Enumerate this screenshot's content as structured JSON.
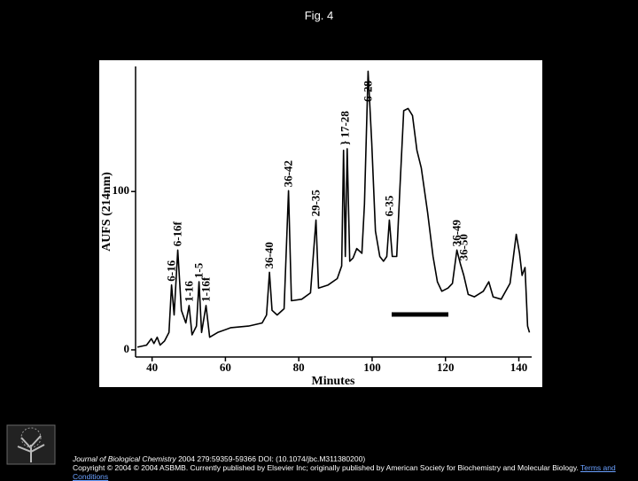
{
  "header": {
    "title": "Fig. 4"
  },
  "chart_data": {
    "type": "line",
    "xlabel": "Minutes",
    "ylabel": "AUFS (214nm)",
    "x": [
      36,
      38.5,
      39.8,
      40.5,
      41.4,
      42.2,
      43.4,
      44.6,
      45.3,
      46,
      47,
      48,
      49.2,
      50.1,
      50.9,
      52.1,
      52.8,
      53.5,
      54.7,
      55.7,
      57.9,
      61.5,
      66.3,
      70,
      71.2,
      72,
      72.7,
      74.1,
      76,
      77.2,
      78,
      80.8,
      83.2,
      84.7,
      85.4,
      88,
      90.5,
      91.7,
      92.2,
      92.7,
      93.2,
      93.9,
      94.8,
      95.8,
      97.2,
      97.9,
      98.9,
      99.9,
      100.9,
      102.1,
      103.1,
      104,
      104.7,
      105.5,
      106.7,
      107.6,
      108.6,
      109.8,
      111,
      112.2,
      113.4,
      115.1,
      116.6,
      117.8,
      119,
      120.7,
      121.9,
      123.1,
      124.1,
      125,
      126.2,
      127.9,
      130.3,
      131.8,
      133,
      135.2,
      137.6,
      139.3,
      140.2,
      140.9,
      141.7,
      142.4,
      142.9
    ],
    "series": [
      {
        "color": "#000000",
        "values": [
          1.7,
          3,
          7,
          4,
          8,
          3,
          5.6,
          11,
          41,
          22,
          63,
          25,
          17,
          28,
          9.5,
          15,
          43,
          11,
          28,
          8,
          11,
          14,
          15,
          17,
          22,
          49,
          25,
          22,
          26,
          100.5,
          31,
          32,
          36,
          82,
          39,
          41,
          45,
          53,
          126,
          59,
          127,
          56,
          58,
          64,
          61,
          92,
          176,
          131,
          75,
          59,
          56,
          59,
          82,
          59,
          59,
          103,
          151,
          152.5,
          148,
          126,
          115,
          87,
          59,
          43,
          37,
          39,
          42,
          63,
          54,
          47,
          35,
          33.5,
          37,
          43,
          33.5,
          32,
          42,
          73,
          61,
          47,
          52,
          15,
          11
        ]
      }
    ],
    "annotations": [
      {
        "text": "6-16",
        "x": 45.3
      },
      {
        "text": "6-16f",
        "x": 47
      },
      {
        "text": "1-16",
        "x": 50.1
      },
      {
        "text": "1-5",
        "x": 52.8
      },
      {
        "text": "1-16f",
        "x": 54.7
      },
      {
        "text": "36-40",
        "x": 72
      },
      {
        "text": "36-42",
        "x": 77.2
      },
      {
        "text": "29-35",
        "x": 84.7
      },
      {
        "text": "} 17-28",
        "x": 92.7
      },
      {
        "text": "6-28",
        "x": 98.9
      },
      {
        "text": "6-35",
        "x": 104.7
      },
      {
        "text": "36-49",
        "x": 123.1
      },
      {
        "text": "36-50",
        "x": 125
      }
    ],
    "xlim": [
      35.5,
      143.5
    ],
    "ylim": [
      -4.5,
      179
    ],
    "xticks": [
      40,
      60,
      80,
      100,
      120,
      140
    ],
    "yticks": [
      0,
      100
    ]
  },
  "footer": {
    "journal": "Journal of Biological Chemistry",
    "citation": " 2004 279:59359-59366 DOI: (10.1074/jbc.M311380200)",
    "copyright": "Copyright © 2004 © 2004 ASBMB. Currently published by Elsevier Inc; originally published by American Society for Biochemistry and Molecular Biology.",
    "link": "Terms and Conditions",
    "logo_text": "ELSEVIER"
  }
}
